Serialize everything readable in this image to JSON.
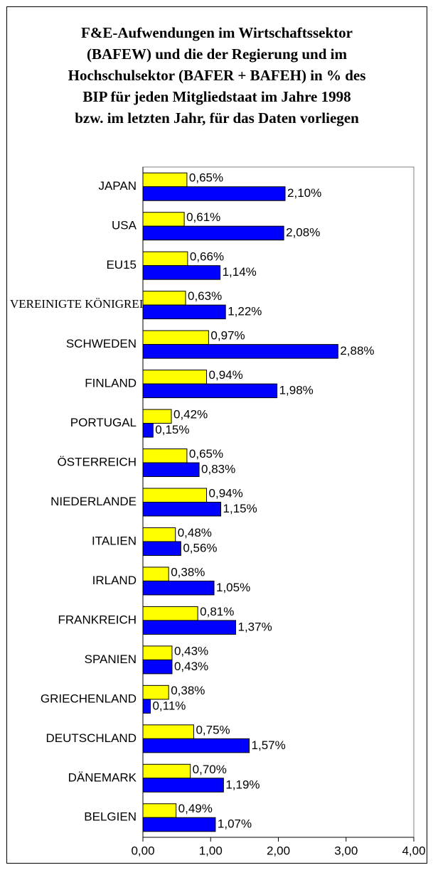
{
  "chart_data": {
    "type": "hbar",
    "title": [
      "F&E-Aufwendungen im Wirtschaftssektor",
      "(BAFEW) und die der Regierung und im",
      "Hochschulsektor (BAFER + BAFEH) in % des",
      "BIP für jeden Mitgliedstaat im Jahre 1998",
      "bzw. im letzten Jahr, für das Daten vorliegen"
    ],
    "categories": [
      "JAPAN",
      "USA",
      "EU15",
      "VEREINIGTE KÖNIGREICH",
      "SCHWEDEN",
      "FINLAND",
      "PORTUGAL",
      "ÖSTERREICH",
      "NIEDERLANDE",
      "ITALIEN",
      "IRLAND",
      "FRANKREICH",
      "SPANIEN",
      "GRIECHENLAND",
      "DEUTSCHLAND",
      "DÄNEMARK",
      "BELGIEN"
    ],
    "series": [
      {
        "color": "#ffff00",
        "values": [
          0.65,
          0.61,
          0.66,
          0.63,
          0.97,
          0.94,
          0.42,
          0.65,
          0.94,
          0.48,
          0.38,
          0.81,
          0.43,
          0.38,
          0.75,
          0.7,
          0.49
        ],
        "value_labels": [
          "0,65%",
          "0,61%",
          "0,66%",
          "0,63%",
          "0,97%",
          "0,94%",
          "0,42%",
          "0,65%",
          "0,94%",
          "0,48%",
          "0,38%",
          "0,81%",
          "0,43%",
          "0,38%",
          "0,75%",
          "0,70%",
          "0,49%"
        ]
      },
      {
        "color": "#0000ff",
        "values": [
          2.1,
          2.08,
          1.14,
          1.22,
          2.88,
          1.98,
          0.15,
          0.83,
          1.15,
          0.56,
          1.05,
          1.37,
          0.43,
          0.11,
          1.57,
          1.19,
          1.07
        ],
        "value_labels": [
          "2,10%",
          "2,08%",
          "1,14%",
          "1,22%",
          "2,88%",
          "1,98%",
          "0,15%",
          "0,83%",
          "1,15%",
          "0,56%",
          "1,05%",
          "1,37%",
          "0,43%",
          "0,11%",
          "1,57%",
          "1,19%",
          "1,07%"
        ]
      }
    ],
    "xlim": [
      0,
      4
    ],
    "xticks": [
      {
        "value": 0,
        "label": "0,00"
      },
      {
        "value": 1,
        "label": "1,00"
      },
      {
        "value": 2,
        "label": "2,00"
      },
      {
        "value": 3,
        "label": "3,00"
      },
      {
        "value": 4,
        "label": "4,00"
      }
    ]
  }
}
